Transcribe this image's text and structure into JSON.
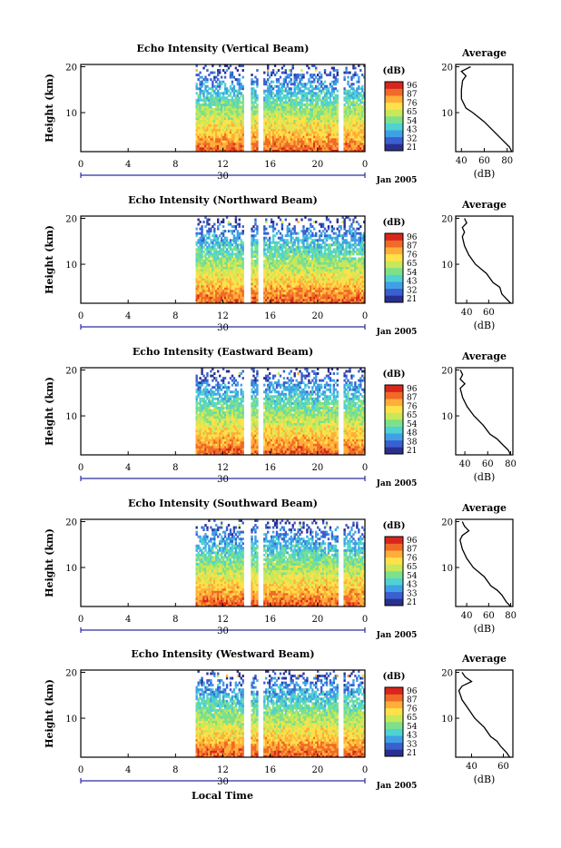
{
  "figure": {
    "bottom_xlabel": "Local Time",
    "colors": {
      "colorbar": [
        "#2a2f8f",
        "#3a5fcf",
        "#3fa0e6",
        "#4fd2d2",
        "#7de08a",
        "#c8e85a",
        "#ffe14a",
        "#ffae3a",
        "#f06a28",
        "#d8261c"
      ]
    }
  },
  "chart_data": [
    {
      "type": "heatmap",
      "title": "Echo Intensity (Vertical Beam)",
      "ylabel": "Height (km)",
      "xlim": [
        0,
        24
      ],
      "ylim": [
        1.5,
        20.5
      ],
      "x_ticks": [
        "0",
        "4",
        "8",
        "12",
        "16",
        "20",
        "0"
      ],
      "y_ticks": [
        "20",
        "10"
      ],
      "date_day": "30",
      "date_label": "Jan 2005",
      "data_start_hour": 9.7,
      "gaps": [
        [
          13.8,
          14.3
        ],
        [
          15.0,
          15.4
        ],
        [
          21.8,
          22.1
        ]
      ],
      "colorbar": {
        "unit": "(dB)",
        "ticks": [
          "96",
          "87",
          "76",
          "65",
          "54",
          "43",
          "32",
          "21"
        ],
        "range": [
          21,
          96
        ]
      },
      "profile": {
        "title": "Average",
        "xlabel": "(dB)",
        "x_ticks": [
          "40",
          "60",
          "80"
        ],
        "xlim": [
          35,
          85
        ],
        "y_ticks": [
          "20",
          "10"
        ],
        "heights": [
          1.5,
          2.5,
          4,
          5,
          6,
          8,
          10,
          11,
          13,
          15,
          17,
          18,
          19,
          19.5,
          20
        ],
        "values": [
          84,
          82,
          76,
          72,
          68,
          60,
          50,
          44,
          40,
          40,
          41,
          44,
          40,
          44,
          48
        ]
      }
    },
    {
      "type": "heatmap",
      "title": "Echo Intensity (Northward Beam)",
      "ylabel": "Height (km)",
      "xlim": [
        0,
        24
      ],
      "ylim": [
        1.5,
        20.5
      ],
      "x_ticks": [
        "0",
        "4",
        "8",
        "12",
        "16",
        "20",
        "0"
      ],
      "y_ticks": [
        "20",
        "10"
      ],
      "date_day": "30",
      "date_label": "Jan 2005",
      "data_start_hour": 9.7,
      "gaps": [
        [
          13.8,
          14.3
        ],
        [
          15.0,
          15.4
        ]
      ],
      "colorbar": {
        "unit": "(dB)",
        "ticks": [
          "96",
          "87",
          "76",
          "65",
          "54",
          "43",
          "32",
          "21"
        ],
        "range": [
          21,
          96
        ]
      },
      "profile": {
        "title": "Average",
        "xlabel": "(dB)",
        "x_ticks": [
          "40",
          "60"
        ],
        "xlim": [
          30,
          82
        ],
        "y_ticks": [
          "20",
          "10"
        ],
        "heights": [
          1.5,
          2.5,
          3.5,
          5,
          6,
          8,
          10,
          12,
          14,
          16,
          17,
          18,
          19,
          20
        ],
        "values": [
          80,
          76,
          72,
          70,
          64,
          58,
          48,
          42,
          38,
          36,
          38,
          36,
          40,
          38
        ]
      }
    },
    {
      "type": "heatmap",
      "title": "Echo Intensity (Eastward Beam)",
      "ylabel": "Height (km)",
      "xlim": [
        0,
        24
      ],
      "ylim": [
        1.5,
        20.5
      ],
      "x_ticks": [
        "0",
        "4",
        "8",
        "12",
        "16",
        "20",
        "0"
      ],
      "y_ticks": [
        "20",
        "10"
      ],
      "date_day": "30",
      "date_label": "Jan 2005",
      "data_start_hour": 9.7,
      "gaps": [
        [
          13.8,
          14.3
        ],
        [
          15.0,
          15.4
        ],
        [
          21.8,
          22.1
        ]
      ],
      "colorbar": {
        "unit": "(dB)",
        "ticks": [
          "96",
          "87",
          "76",
          "65",
          "54",
          "48",
          "38",
          "21"
        ],
        "range": [
          21,
          96
        ]
      },
      "profile": {
        "title": "Average",
        "xlabel": "(dB)",
        "x_ticks": [
          "40",
          "60",
          "80"
        ],
        "xlim": [
          32,
          82
        ],
        "y_ticks": [
          "20",
          "10"
        ],
        "heights": [
          1.5,
          2.5,
          4,
          5,
          6,
          8,
          10,
          12,
          14,
          16,
          17,
          18,
          19,
          20
        ],
        "values": [
          80,
          78,
          72,
          68,
          62,
          56,
          48,
          42,
          38,
          36,
          40,
          36,
          38,
          36
        ]
      }
    },
    {
      "type": "heatmap",
      "title": "Echo Intensity (Southward Beam)",
      "ylabel": "Height (km)",
      "xlim": [
        0,
        24
      ],
      "ylim": [
        1.5,
        20.5
      ],
      "x_ticks": [
        "0",
        "4",
        "8",
        "12",
        "16",
        "20",
        "0"
      ],
      "y_ticks": [
        "20",
        "10"
      ],
      "date_day": "30",
      "date_label": "Jan 2005",
      "data_start_hour": 9.7,
      "gaps": [
        [
          13.8,
          14.3
        ],
        [
          15.0,
          15.4
        ],
        [
          21.8,
          22.1
        ]
      ],
      "colorbar": {
        "unit": "(dB)",
        "ticks": [
          "96",
          "87",
          "76",
          "65",
          "54",
          "43",
          "33",
          "21"
        ],
        "range": [
          21,
          96
        ]
      },
      "profile": {
        "title": "Average",
        "xlabel": "(dB)",
        "x_ticks": [
          "40",
          "60",
          "80"
        ],
        "xlim": [
          30,
          82
        ],
        "y_ticks": [
          "20",
          "10"
        ],
        "heights": [
          1.5,
          2.5,
          4,
          5,
          6,
          8,
          10,
          12,
          14,
          16,
          17,
          18,
          19,
          20
        ],
        "values": [
          80,
          76,
          72,
          68,
          62,
          56,
          46,
          40,
          36,
          34,
          36,
          42,
          38,
          36
        ]
      }
    },
    {
      "type": "heatmap",
      "title": "Echo Intensity (Westward Beam)",
      "ylabel": "Height (km)",
      "xlim": [
        0,
        24
      ],
      "ylim": [
        1.5,
        20.5
      ],
      "x_ticks": [
        "0",
        "4",
        "8",
        "12",
        "16",
        "20",
        "0"
      ],
      "y_ticks": [
        "20",
        "10"
      ],
      "date_day": "30",
      "date_label": "Jan 2005",
      "data_start_hour": 9.7,
      "gaps": [
        [
          13.8,
          14.3
        ],
        [
          15.0,
          15.4
        ],
        [
          21.8,
          22.1
        ]
      ],
      "colorbar": {
        "unit": "(dB)",
        "ticks": [
          "96",
          "87",
          "76",
          "65",
          "54",
          "43",
          "33",
          "21"
        ],
        "range": [
          21,
          96
        ]
      },
      "profile": {
        "title": "Average",
        "xlabel": "(dB)",
        "x_ticks": [
          "40",
          "60"
        ],
        "xlim": [
          30,
          66
        ],
        "y_ticks": [
          "20",
          "10"
        ],
        "heights": [
          1.5,
          2.5,
          4,
          5,
          6,
          8,
          10,
          12,
          14,
          16,
          17,
          18,
          19,
          20
        ],
        "values": [
          64,
          62,
          58,
          56,
          52,
          48,
          42,
          38,
          34,
          32,
          34,
          40,
          36,
          34
        ]
      }
    }
  ]
}
